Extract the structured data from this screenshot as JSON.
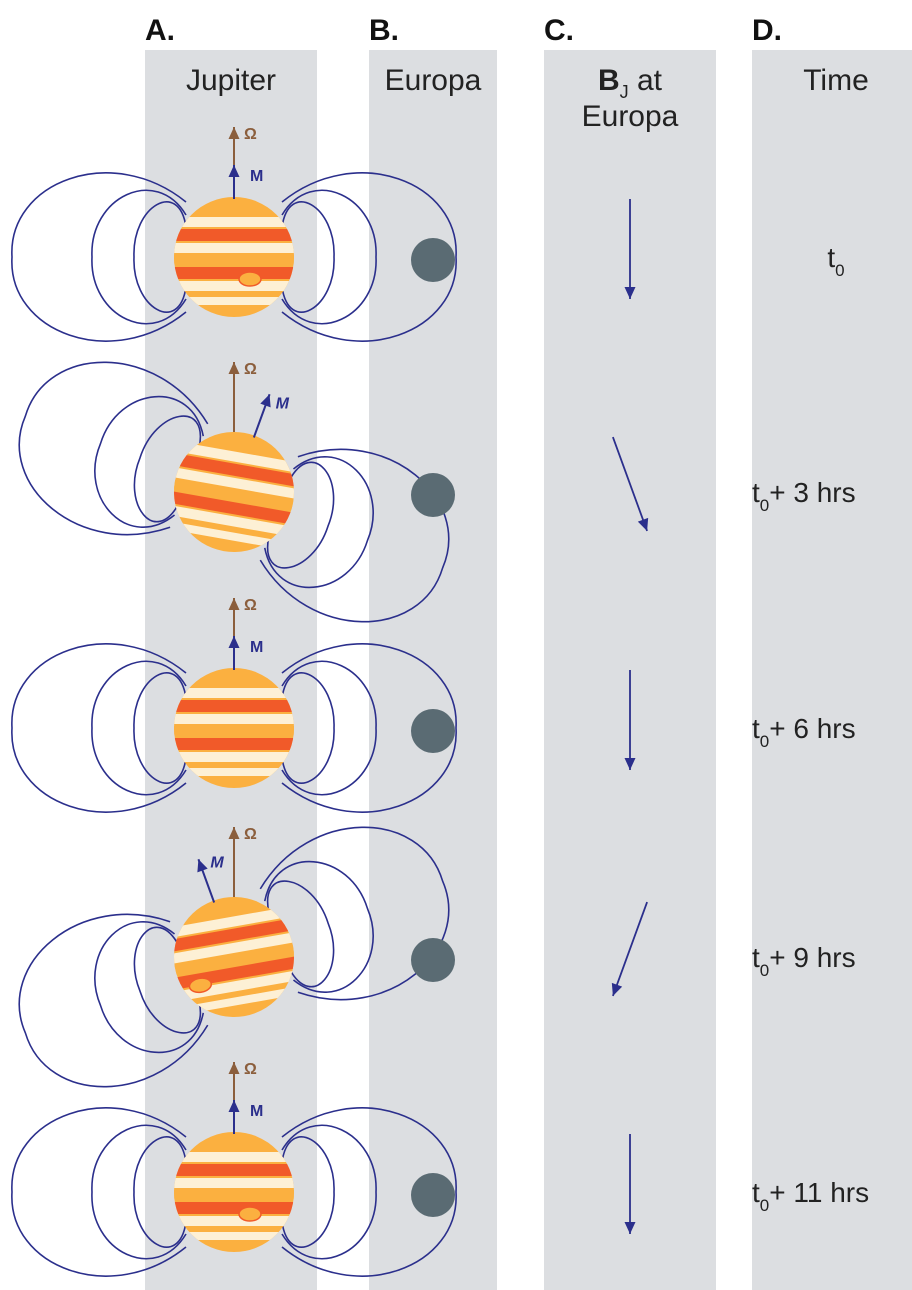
{
  "columns": [
    {
      "letter": "A.",
      "title": "Jupiter"
    },
    {
      "letter": "B.",
      "title": "Europa"
    },
    {
      "letter": "C.",
      "title_bold": "B",
      "title_sub": "J",
      "title_rest": " at",
      "title_line2": "Europa"
    },
    {
      "letter": "D.",
      "title": "Time"
    }
  ],
  "vector_labels": {
    "omega": "Ω",
    "moment": "M"
  },
  "rows": [
    {
      "time_main": "t",
      "time_sub": "0",
      "time_rest": "",
      "dipole_tilt_deg": 0,
      "field_angle_deg": 0,
      "red_spot": "front-right"
    },
    {
      "time_main": "t",
      "time_sub": "0",
      "time_rest": "+ 3 hrs",
      "dipole_tilt_deg": 20,
      "field_angle_deg": 20,
      "red_spot": "none"
    },
    {
      "time_main": "t",
      "time_sub": "0",
      "time_rest": "+ 6 hrs",
      "dipole_tilt_deg": 0,
      "field_angle_deg": 0,
      "red_spot": "none"
    },
    {
      "time_main": "t",
      "time_sub": "0",
      "time_rest": "+ 9 hrs",
      "dipole_tilt_deg": -20,
      "field_angle_deg": -20,
      "red_spot": "front-left"
    },
    {
      "time_main": "t",
      "time_sub": "0",
      "time_rest": "+ 11 hrs",
      "dipole_tilt_deg": 0,
      "field_angle_deg": 0,
      "red_spot": "front-right"
    }
  ],
  "colors": {
    "band_bg": "#dcdee1",
    "field_line": "#2b2f8c",
    "omega_vector": "#8b5e3c",
    "moment_vector": "#2b2f8c",
    "jupiter_orange": "#fbb040",
    "jupiter_red": "#f15a29",
    "jupiter_cream": "#fdf0d5",
    "europa": "#5a6b73"
  }
}
